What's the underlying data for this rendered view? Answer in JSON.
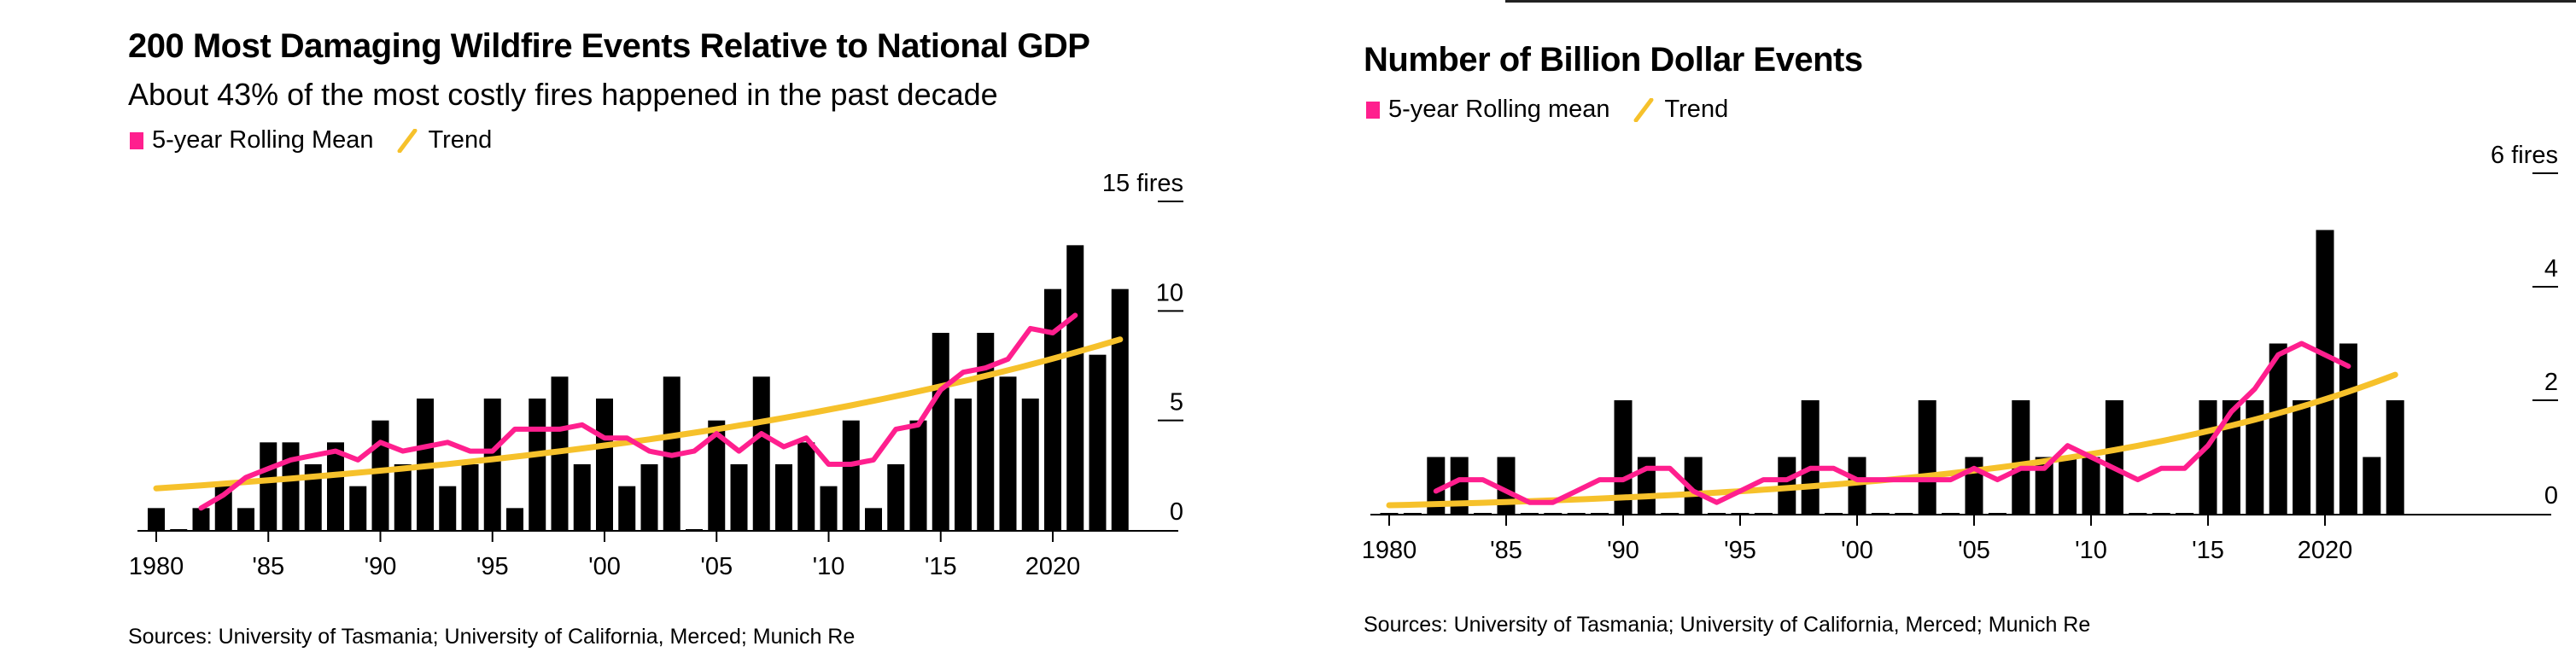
{
  "colors": {
    "bar": "#000000",
    "rolling_mean": "#ff1f8e",
    "trend": "#f6c12b",
    "axis": "#000000",
    "top_rule": "#222222"
  },
  "chart_data": [
    {
      "type": "bar",
      "title": "200 Most Damaging Wildfire Events Relative to National GDP",
      "subtitle": "About 43% of the most costly fires happened in the past decade",
      "legend": [
        {
          "label": "5-year Rolling Mean",
          "marker": "square",
          "color": "#ff1f8e"
        },
        {
          "label": "Trend",
          "marker": "line",
          "color": "#f6c12b"
        }
      ],
      "legend_position": "top-left",
      "xlabel": "",
      "ylabel": "fires",
      "y_unit_label": "15 fires",
      "ylim": [
        0,
        15
      ],
      "yticks": [
        0,
        5,
        10,
        15
      ],
      "ytick_labels": [
        "0",
        "5",
        "10",
        "15 fires"
      ],
      "y_axis_side": "right",
      "grid": false,
      "xlim": [
        1980,
        2023
      ],
      "xticks": [
        1980,
        1985,
        1990,
        1995,
        2000,
        2005,
        2010,
        2015,
        2020
      ],
      "xtick_labels": [
        "1980",
        "'85",
        "'90",
        "'95",
        "'00",
        "'05",
        "'10",
        "'15",
        "2020"
      ],
      "x": [
        1980,
        1981,
        1982,
        1983,
        1984,
        1985,
        1986,
        1987,
        1988,
        1989,
        1990,
        1991,
        1992,
        1993,
        1994,
        1995,
        1996,
        1997,
        1998,
        1999,
        2000,
        2001,
        2002,
        2003,
        2004,
        2005,
        2006,
        2007,
        2008,
        2009,
        2010,
        2011,
        2012,
        2013,
        2014,
        2015,
        2016,
        2017,
        2018,
        2019,
        2020,
        2021,
        2022,
        2023
      ],
      "series": [
        {
          "name": "Events",
          "type": "bar",
          "values": [
            1,
            0,
            1,
            2,
            1,
            4,
            4,
            3,
            4,
            2,
            5,
            3,
            6,
            2,
            3,
            6,
            1,
            6,
            7,
            3,
            6,
            2,
            3,
            7,
            0,
            5,
            3,
            7,
            3,
            4,
            2,
            5,
            1,
            3,
            5,
            9,
            6,
            9,
            7,
            6,
            11,
            13,
            8,
            11
          ]
        },
        {
          "name": "5-year Rolling Mean",
          "type": "line",
          "x_range": [
            1982,
            2021
          ],
          "values": [
            1.0,
            1.6,
            2.4,
            2.8,
            3.2,
            3.4,
            3.6,
            3.2,
            4.0,
            3.6,
            3.8,
            4.0,
            3.6,
            3.6,
            4.6,
            4.6,
            4.6,
            4.8,
            4.2,
            4.2,
            3.6,
            3.4,
            3.6,
            4.4,
            3.6,
            4.4,
            3.8,
            4.2,
            3.0,
            3.0,
            3.2,
            4.6,
            4.8,
            6.4,
            7.2,
            7.4,
            7.8,
            9.2,
            9.0,
            9.8
          ]
        },
        {
          "name": "Trend",
          "type": "line",
          "x_range": [
            1980,
            2023
          ],
          "start_value": 1.9,
          "end_value": 8.7,
          "shape": "exponential"
        }
      ],
      "sources": "Sources: University of Tasmania; University of California, Merced; Munich Re"
    },
    {
      "type": "bar",
      "title": "Number of Billion Dollar Events",
      "subtitle": "",
      "legend": [
        {
          "label": "5-year Rolling mean",
          "marker": "square",
          "color": "#ff1f8e"
        },
        {
          "label": "Trend",
          "marker": "line",
          "color": "#f6c12b"
        }
      ],
      "legend_position": "top-left",
      "xlabel": "",
      "ylabel": "fires",
      "y_unit_label": "6 fires",
      "ylim": [
        0,
        6
      ],
      "yticks": [
        0,
        2,
        4,
        6
      ],
      "ytick_labels": [
        "0",
        "2",
        "4",
        "6 fires"
      ],
      "y_axis_side": "right",
      "grid": false,
      "xlim": [
        1980,
        2023
      ],
      "xticks": [
        1980,
        1985,
        1990,
        1995,
        2000,
        2005,
        2010,
        2015,
        2020
      ],
      "xtick_labels": [
        "1980",
        "'85",
        "'90",
        "'95",
        "'00",
        "'05",
        "'10",
        "'15",
        "2020"
      ],
      "x": [
        1980,
        1981,
        1982,
        1983,
        1984,
        1985,
        1986,
        1987,
        1988,
        1989,
        1990,
        1991,
        1992,
        1993,
        1994,
        1995,
        1996,
        1997,
        1998,
        1999,
        2000,
        2001,
        2002,
        2003,
        2004,
        2005,
        2006,
        2007,
        2008,
        2009,
        2010,
        2011,
        2012,
        2013,
        2014,
        2015,
        2016,
        2017,
        2018,
        2019,
        2020,
        2021,
        2022,
        2023
      ],
      "series": [
        {
          "name": "Events",
          "type": "bar",
          "values": [
            0,
            0,
            1,
            1,
            0,
            1,
            0,
            0,
            0,
            0,
            2,
            1,
            0,
            1,
            0,
            0,
            0,
            1,
            2,
            0,
            1,
            0,
            0,
            2,
            0,
            1,
            0,
            2,
            1,
            1,
            1,
            2,
            0,
            0,
            0,
            2,
            2,
            2,
            3,
            2,
            5,
            3,
            1,
            2
          ]
        },
        {
          "name": "5-year Rolling mean",
          "type": "line",
          "x_range": [
            1982,
            2021
          ],
          "values": [
            0.4,
            0.6,
            0.6,
            0.4,
            0.2,
            0.2,
            0.4,
            0.6,
            0.6,
            0.8,
            0.8,
            0.4,
            0.2,
            0.4,
            0.6,
            0.6,
            0.8,
            0.8,
            0.6,
            0.6,
            0.6,
            0.6,
            0.6,
            0.8,
            0.6,
            0.8,
            0.8,
            1.2,
            1.0,
            0.8,
            0.6,
            0.8,
            0.8,
            1.2,
            1.8,
            2.2,
            2.8,
            3.0,
            2.8,
            2.6
          ]
        },
        {
          "name": "Trend",
          "type": "line",
          "x_range": [
            1980,
            2023
          ],
          "start_value": 0.15,
          "end_value": 2.45,
          "shape": "exponential"
        }
      ],
      "sources": "Sources: University of Tasmania; University of California, Merced; Munich Re"
    }
  ]
}
